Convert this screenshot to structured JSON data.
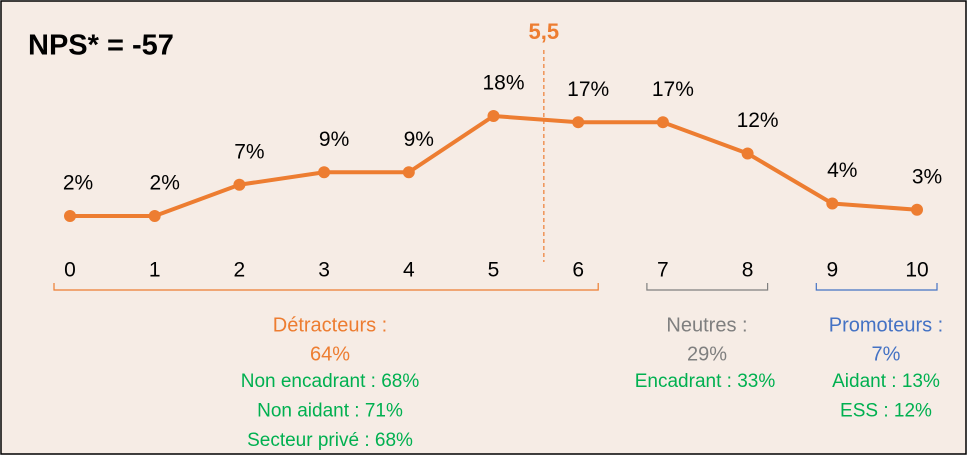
{
  "chart_data": {
    "type": "line",
    "title": "NPS* = -57",
    "categories": [
      "0",
      "1",
      "2",
      "3",
      "4",
      "5",
      "6",
      "7",
      "8",
      "9",
      "10"
    ],
    "series": [
      {
        "name": "NPS",
        "color": "#ed7d31",
        "values": [
          2,
          2,
          7,
          9,
          9,
          18,
          17,
          17,
          12,
          4,
          3
        ],
        "value_labels": [
          "2%",
          "2%",
          "7%",
          "9%",
          "9%",
          "18%",
          "17%",
          "17%",
          "12%",
          "4%",
          "3%"
        ]
      }
    ],
    "annotations": [
      {
        "value": 5.5,
        "label": "5,5",
        "color": "#ed7d31"
      }
    ],
    "groups": [
      {
        "name": "Détracteurs :",
        "share": "64%",
        "range": [
          0,
          6
        ],
        "color": "#ed7d31",
        "details": [
          "Non encadrant : 68%",
          "Non aidant : 71%",
          "Secteur privé : 68%"
        ]
      },
      {
        "name": "Neutres :",
        "share": "29%",
        "range": [
          7,
          8
        ],
        "color": "#7f7f7f",
        "details": [
          "Encadrant : 33%"
        ]
      },
      {
        "name": "Promoteurs :",
        "share": "7%",
        "range": [
          9,
          10
        ],
        "color": "#4472c4",
        "details": [
          "Aidant : 13%",
          "ESS : 12%"
        ]
      }
    ],
    "details_color": "#00b050"
  }
}
